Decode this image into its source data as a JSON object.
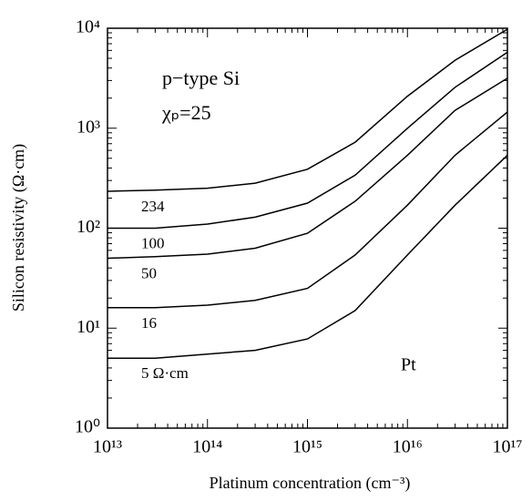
{
  "chart_data": {
    "type": "line",
    "xlabel": "Platinum concentration (cm⁻³)",
    "ylabel": "Silicon resistivity (Ω·cm)",
    "annotations": [
      "p−type  Si",
      "χₚ=25",
      "Pt"
    ],
    "log_x": true,
    "log_y": true,
    "xlim": [
      10000000000000.0,
      1e+17
    ],
    "xticks": [
      {
        "value": 10000000000000.0,
        "label": "10¹³"
      },
      {
        "value": 100000000000000.0,
        "label": "10¹⁴"
      },
      {
        "value": 1000000000000000.0,
        "label": "10¹⁵"
      },
      {
        "value": 1e+16,
        "label": "10¹⁶"
      },
      {
        "value": 1e+17,
        "label": "10¹⁷"
      }
    ],
    "ylim": [
      1,
      10000
    ],
    "yticks": [
      {
        "value": 1,
        "label": "10⁰"
      },
      {
        "value": 10,
        "label": "10¹"
      },
      {
        "value": 100,
        "label": "10²"
      },
      {
        "value": 1000,
        "label": "10³"
      },
      {
        "value": 10000,
        "label": "10⁴"
      }
    ],
    "x": [
      10000000000000.0,
      30000000000000.0,
      100000000000000.0,
      300000000000000.0,
      1000000000000000.0,
      3000000000000000.0,
      1e+16,
      3e+16,
      1e+17
    ],
    "series": [
      {
        "name": "234",
        "color": "#000000",
        "values": [
          234,
          240,
          251,
          282,
          389,
          724,
          2090,
          4790,
          9770
        ]
      },
      {
        "name": "100",
        "color": "#000000",
        "values": [
          100,
          100,
          110,
          129,
          178,
          339,
          1000,
          2570,
          5750
        ]
      },
      {
        "name": "50",
        "color": "#000000",
        "values": [
          50,
          52,
          55,
          63,
          89,
          186,
          537,
          1510,
          3160
        ]
      },
      {
        "name": "16",
        "color": "#000000",
        "values": [
          16,
          16,
          17,
          19,
          25,
          54,
          170,
          537,
          1450
        ]
      },
      {
        "name": "5 Ω·cm",
        "color": "#000000",
        "values": [
          5,
          5,
          5.5,
          6,
          7.8,
          15,
          54,
          170,
          537
        ]
      }
    ]
  }
}
